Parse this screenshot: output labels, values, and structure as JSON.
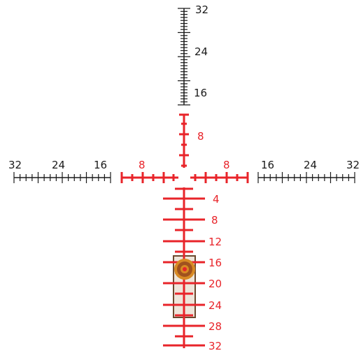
{
  "colors": {
    "black_reticle": "#1a1a1a",
    "red_reticle": "#e8242a",
    "target_fill": "#eee5da",
    "target_border": "#6b4a2f",
    "bullseye_outer": "#d88a24",
    "bullseye_mid": "#a0521e",
    "bullseye_inner": "#e8242a"
  },
  "labels": {
    "top": [
      "32",
      "24",
      "16"
    ],
    "upper_red": [
      "8"
    ],
    "left_black": [
      "32",
      "24",
      "16"
    ],
    "left_red": [
      "8"
    ],
    "right_red": [
      "8"
    ],
    "right_black": [
      "16",
      "24",
      "32"
    ],
    "lower_red": [
      "4",
      "8",
      "12",
      "16",
      "20",
      "24",
      "28",
      "32"
    ]
  },
  "icons": {
    "target": "target-plate-icon",
    "bullseye": "bullseye-icon"
  }
}
